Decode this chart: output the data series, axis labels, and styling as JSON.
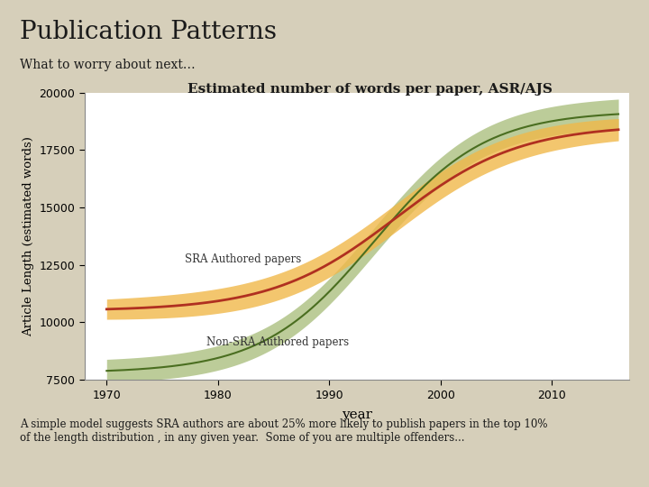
{
  "title": "Publication Patterns",
  "subtitle": "What to worry about next…",
  "chart_title": "Estimated number of words per paper, ASR/AJS",
  "xlabel": "year",
  "ylabel": "Article Length (estimated words)",
  "bg_color": "#d6cfba",
  "plot_bg_color": "#ffffff",
  "xlim": [
    1968,
    2017
  ],
  "ylim": [
    7500,
    20000
  ],
  "xticks": [
    1970,
    1980,
    1990,
    2000,
    2010
  ],
  "yticks": [
    7500,
    10000,
    12500,
    15000,
    17500,
    20000
  ],
  "sra_color": "#b03020",
  "sra_band_color": "#f0b84a",
  "nonsra_color": "#4a6e20",
  "nonsra_band_color": "#7a9a35",
  "footnote": "A simple model suggests SRA authors are about 25% more likely to publish papers in the top 10%\nof the length distribution , in any given year.  Some of you are multiple offenders...",
  "sra_label": "SRA Authored papers",
  "nonsra_label": "Non-SRA Authored papers",
  "title_fontsize": 20,
  "subtitle_fontsize": 10,
  "chart_title_fontsize": 11
}
